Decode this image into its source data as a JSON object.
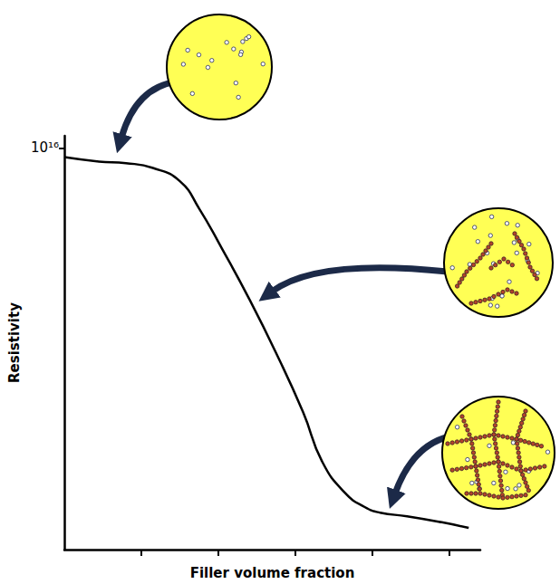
{
  "chart_data": {
    "type": "line",
    "xlabel": "Filler volume fraction",
    "ylabel": "Resistivity",
    "x": [
      0,
      0.45,
      0.8,
      1.15,
      1.5,
      1.75,
      2.05,
      2.4,
      2.75,
      3.1,
      3.35,
      3.65,
      3.9,
      4.1,
      4.45,
      4.9,
      5.25
    ],
    "values": [
      9770000000000000.0,
      9660000000000000.0,
      9620000000000000.0,
      9500000000000000.0,
      9170000000000000.0,
      8490000000000000.0,
      7480000000000000.0,
      6240000000000000.0,
      4890000000000000.0,
      3420000000000000.0,
      2180000000000000.0,
      1400000000000000.0,
      1060000000000000.0,
      920000000000000.0,
      830000000000000.0,
      680000000000000.0,
      540000000000000.0
    ],
    "color": "#000000",
    "marker": "none",
    "xlim": [
      0,
      5.4
    ],
    "xticks": [
      1,
      2,
      3,
      4,
      5
    ],
    "ylim": [
      0,
      1.03e+16
    ],
    "yticks": [
      {
        "value": 1e+16,
        "label": "10¹⁶"
      }
    ],
    "tick_labels": "y",
    "grid": false
  }
}
